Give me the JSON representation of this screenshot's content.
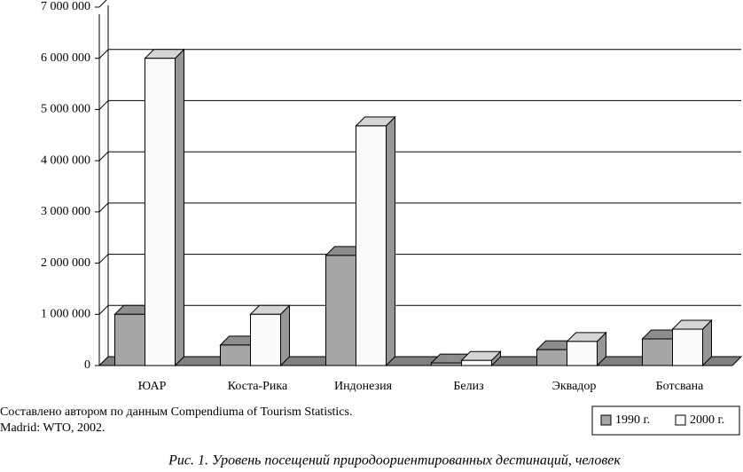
{
  "chart_data": {
    "type": "bar3d",
    "categories": [
      "ЮАР",
      "Коста-Рика",
      "Индонезия",
      "Белиз",
      "Эквадор",
      "Ботсвана"
    ],
    "series": [
      {
        "name": "1990 г.",
        "color": "#a6a6a6",
        "values": [
          1000000,
          400000,
          2150000,
          50000,
          310000,
          520000
        ]
      },
      {
        "name": "2000 г.",
        "color": "#fafafa",
        "values": [
          6000000,
          1000000,
          4680000,
          100000,
          470000,
          710000
        ]
      }
    ],
    "ylim": [
      0,
      7000000
    ],
    "yticks": [
      0,
      {
        "value": 1000000,
        "label": "1 000 000"
      },
      {
        "value": 2000000,
        "label": "2 000 000"
      },
      {
        "value": 3000000,
        "label": "3 000 000"
      },
      {
        "value": 4000000,
        "label": "4 000 000"
      },
      {
        "value": 5000000,
        "label": "5 000 000"
      },
      {
        "value": 6000000,
        "label": "6 000 000"
      },
      {
        "value": 7000000,
        "label": "7 000 000"
      }
    ],
    "grid": true,
    "legend": "bottom-right",
    "source": [
      "Составлено автором по данным Compendiuma of Tourism Statistics.",
      "Madrid: WTO, 2002."
    ],
    "caption": "Рис. 1. Уровень посещений природоориентированных дестинаций, человек"
  }
}
